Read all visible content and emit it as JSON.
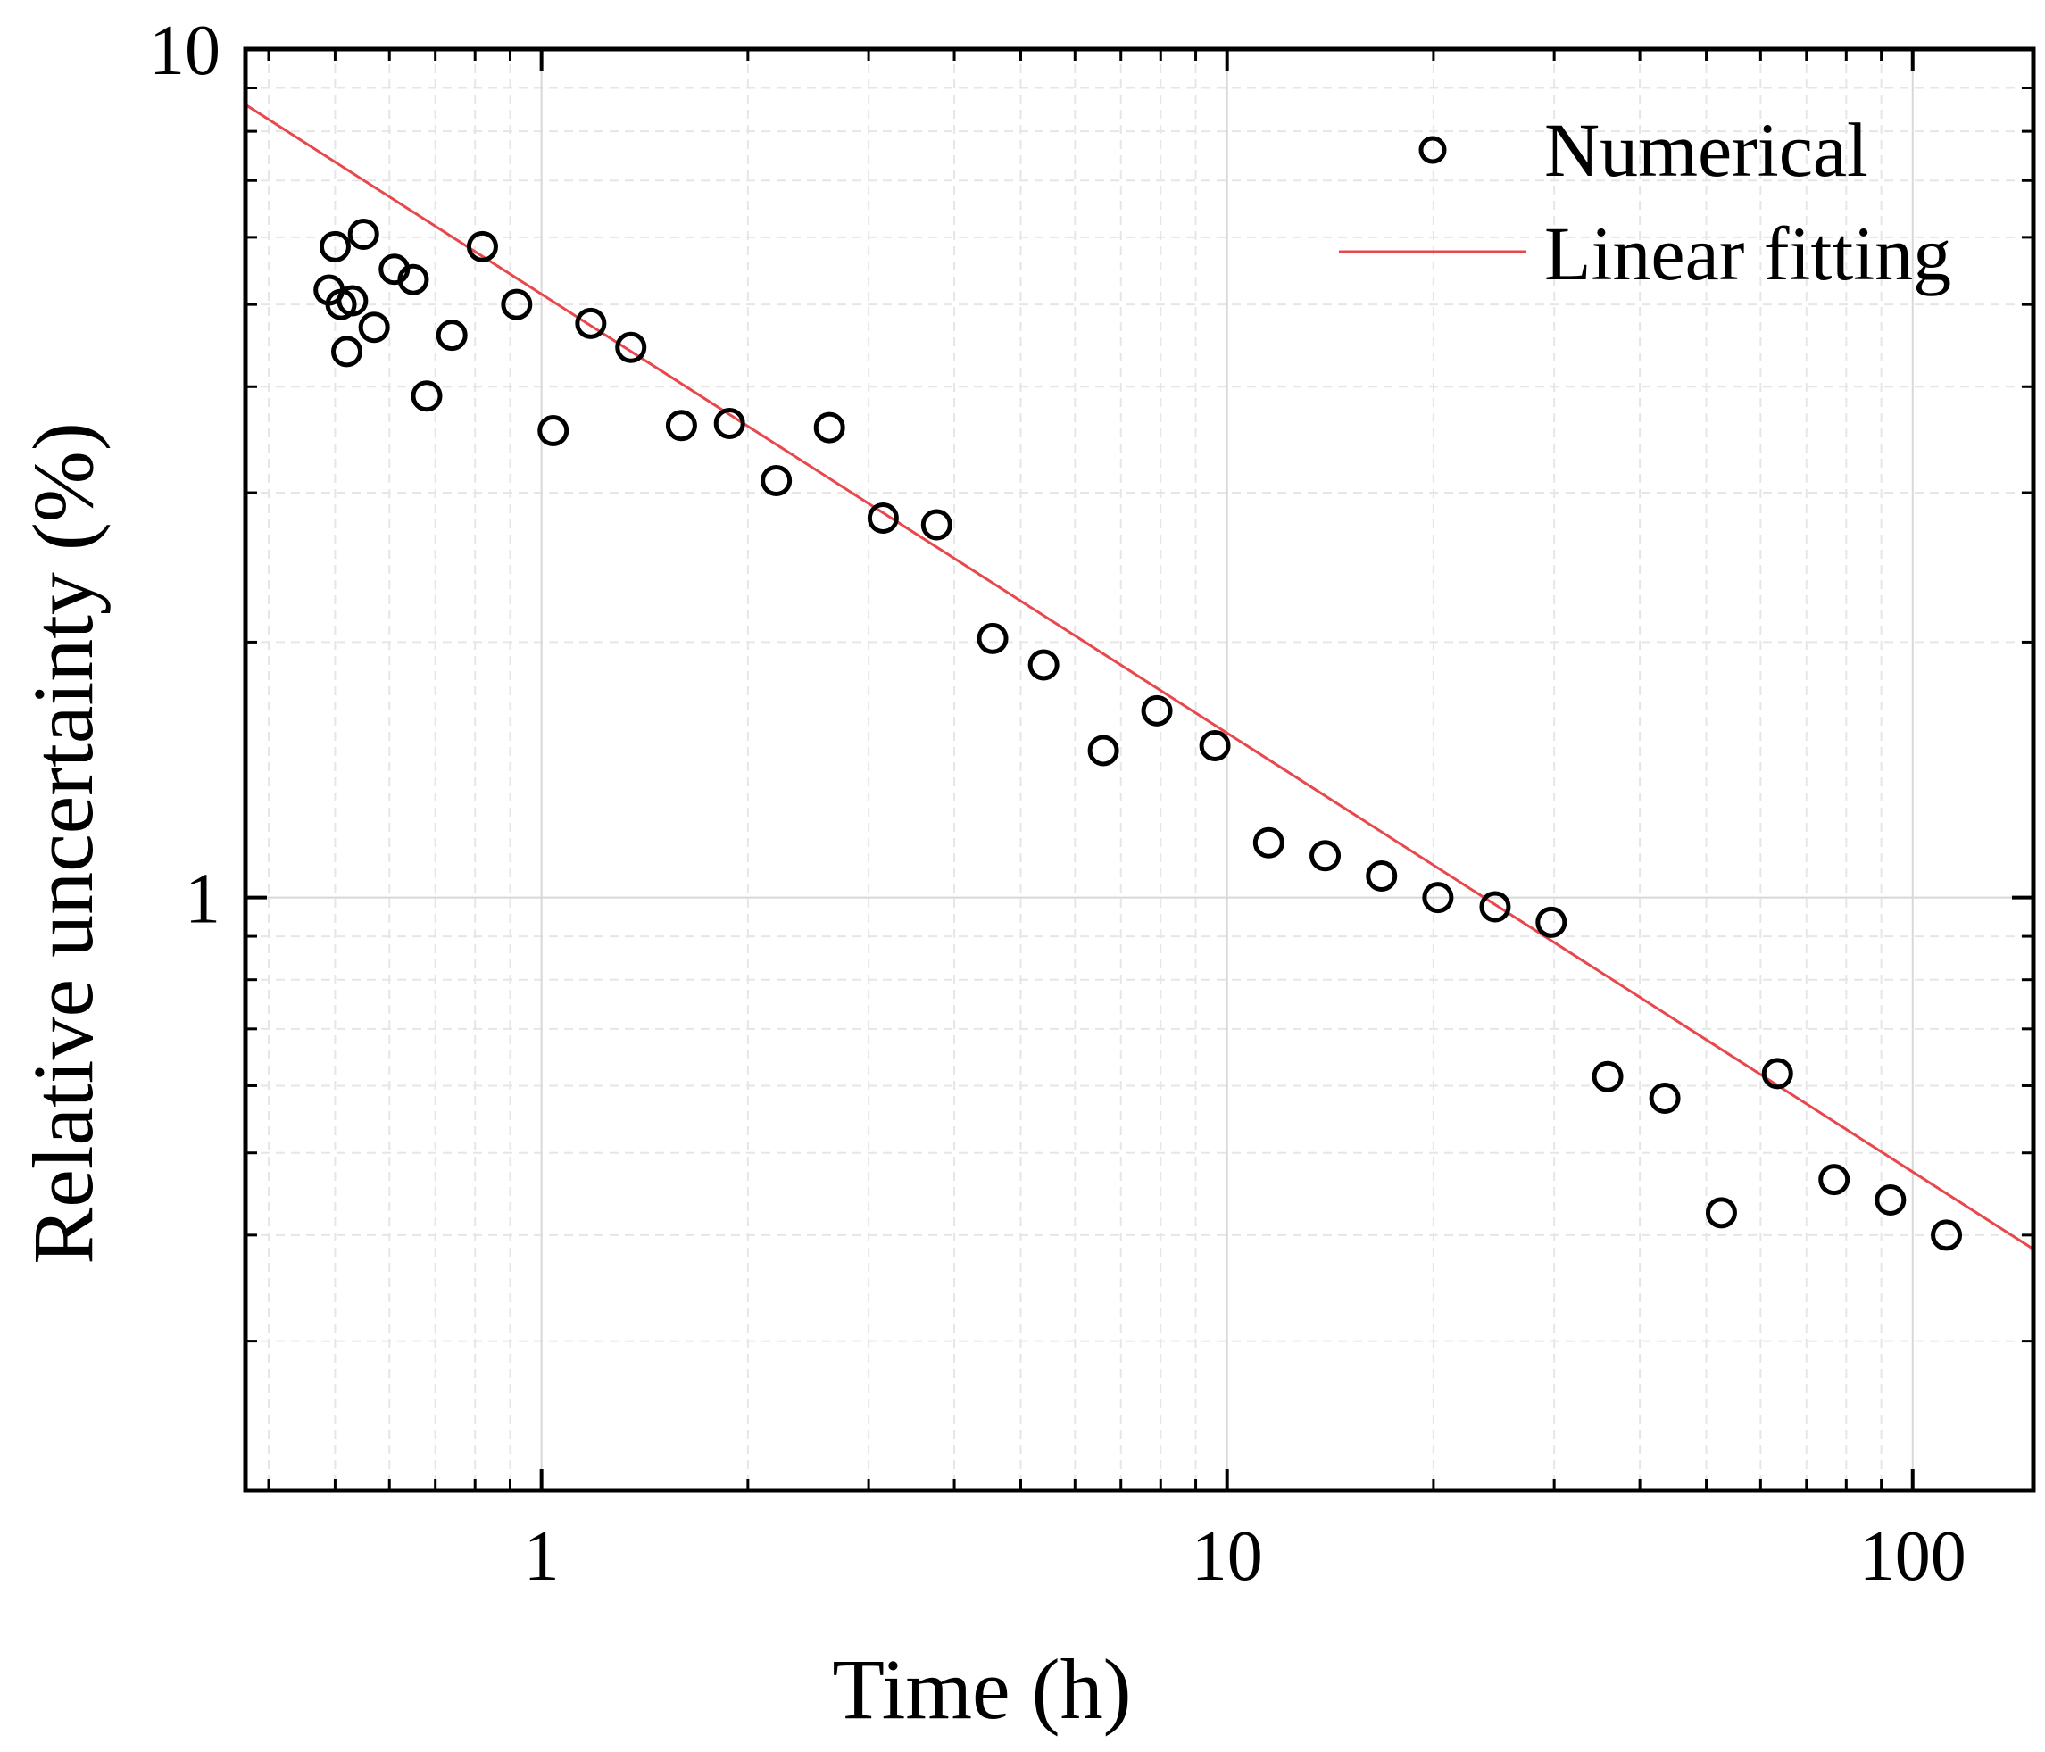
{
  "chart_data": {
    "type": "scatter",
    "title": "",
    "xlabel": "Time (h)",
    "ylabel": "Relative uncertainty (%)",
    "xscale": "log",
    "yscale": "log",
    "xlim": [
      0.37,
      150
    ],
    "ylim": [
      0.2,
      10
    ],
    "x_ticks": [
      1,
      10,
      100
    ],
    "x_tick_labels": [
      "1",
      "10",
      "100"
    ],
    "y_ticks": [
      1,
      10
    ],
    "y_tick_labels": [
      "1",
      "10"
    ],
    "grid": true,
    "legend_position": "top-right",
    "series": [
      {
        "name": "Numerical",
        "kind": "scatter",
        "marker": "open-circle",
        "color": "#000000",
        "points": [
          [
            0.49,
            5.2
          ],
          [
            0.5,
            5.85
          ],
          [
            0.51,
            5.0
          ],
          [
            0.52,
            4.4
          ],
          [
            0.53,
            5.05
          ],
          [
            0.55,
            6.05
          ],
          [
            0.57,
            4.7
          ],
          [
            0.61,
            5.5
          ],
          [
            0.65,
            5.35
          ],
          [
            0.68,
            3.9
          ],
          [
            0.74,
            4.6
          ],
          [
            0.82,
            5.85
          ],
          [
            0.92,
            5.0
          ],
          [
            1.04,
            3.55
          ],
          [
            1.18,
            4.75
          ],
          [
            1.35,
            4.45
          ],
          [
            1.6,
            3.6
          ],
          [
            1.88,
            3.62
          ],
          [
            2.2,
            3.1
          ],
          [
            2.63,
            3.58
          ],
          [
            3.15,
            2.8
          ],
          [
            3.77,
            2.75
          ],
          [
            4.55,
            2.02
          ],
          [
            5.4,
            1.88
          ],
          [
            6.6,
            1.49
          ],
          [
            7.9,
            1.66
          ],
          [
            9.6,
            1.51
          ],
          [
            11.5,
            1.16
          ],
          [
            13.9,
            1.12
          ],
          [
            16.8,
            1.06
          ],
          [
            20.3,
            1.0
          ],
          [
            24.6,
            0.975
          ],
          [
            29.7,
            0.935
          ],
          [
            35.9,
            0.615
          ],
          [
            43.5,
            0.58
          ],
          [
            52.6,
            0.425
          ],
          [
            63.5,
            0.62
          ],
          [
            76.8,
            0.465
          ],
          [
            92.8,
            0.44
          ],
          [
            112.0,
            0.4
          ]
        ]
      },
      {
        "name": "Linear fitting",
        "kind": "line",
        "color": "#e8474d",
        "points": [
          [
            0.37,
            8.6
          ],
          [
            150,
            0.385
          ]
        ]
      }
    ]
  }
}
